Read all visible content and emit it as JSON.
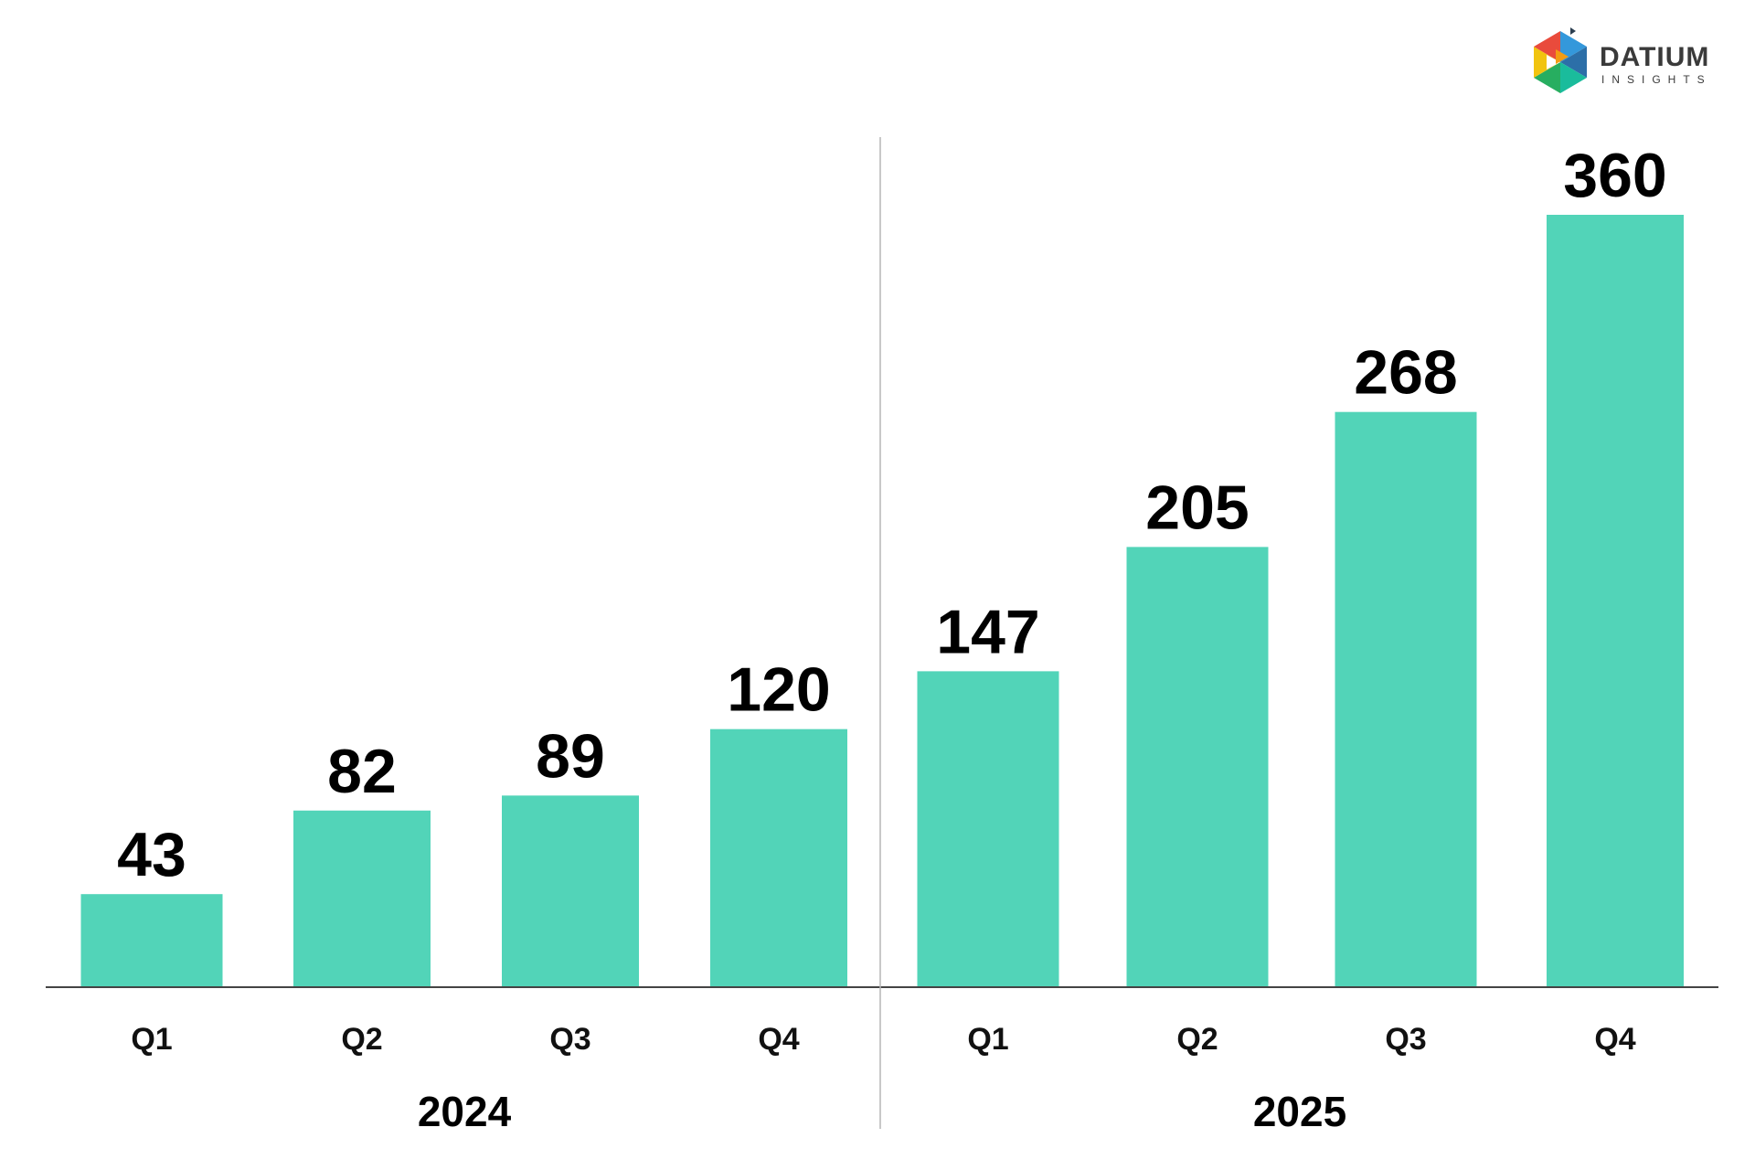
{
  "logo": {
    "name": "DATIUM",
    "tagline": "INSIGHTS",
    "colors": [
      "#e94b3c",
      "#f39c12",
      "#f1c40f",
      "#2ecc71",
      "#27ae60",
      "#3498db",
      "#2c3e50",
      "#9b59b6"
    ]
  },
  "chart_data": {
    "type": "bar",
    "categories": [
      "Q1",
      "Q2",
      "Q3",
      "Q4",
      "Q1",
      "Q2",
      "Q3",
      "Q4"
    ],
    "groups": [
      {
        "label": "2024",
        "categories": [
          "Q1",
          "Q2",
          "Q3",
          "Q4"
        ]
      },
      {
        "label": "2025",
        "categories": [
          "Q1",
          "Q2",
          "Q3",
          "Q4"
        ]
      }
    ],
    "values": [
      43,
      82,
      89,
      120,
      147,
      205,
      268,
      360
    ],
    "value_labels": [
      "43",
      "82",
      "89",
      "120",
      "147",
      "205",
      "268",
      "360"
    ],
    "ylim": [
      0,
      360
    ],
    "bar_color": "#52d4b8",
    "grid": false,
    "legend": "none",
    "title": "",
    "xlabel": "",
    "ylabel": ""
  }
}
